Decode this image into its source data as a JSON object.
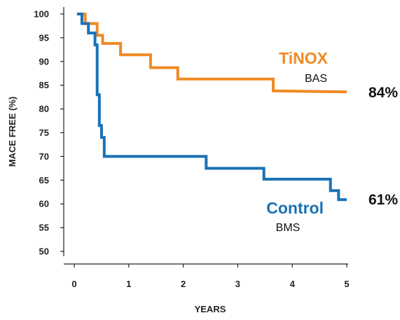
{
  "chart_data": {
    "type": "line",
    "step": true,
    "xlabel": "YEARS",
    "ylabel": "MACE FREE (%)",
    "xlim": [
      0,
      5
    ],
    "ylim": [
      50,
      100
    ],
    "x_ticks": [
      "0",
      "1",
      "2",
      "3",
      "4",
      "5"
    ],
    "y_ticks": [
      "100",
      "95",
      "90",
      "85",
      "80",
      "75",
      "70",
      "65",
      "60",
      "55",
      "50"
    ],
    "grid": false,
    "series": [
      {
        "name": "TiNOX",
        "sublabel": "BAS",
        "color": "#f08a24",
        "end_label": "84%",
        "points": [
          [
            0.05,
            100
          ],
          [
            0.2,
            100
          ],
          [
            0.2,
            98
          ],
          [
            0.42,
            98
          ],
          [
            0.42,
            95.5
          ],
          [
            0.52,
            95.5
          ],
          [
            0.52,
            93.8
          ],
          [
            0.85,
            93.8
          ],
          [
            0.85,
            91.4
          ],
          [
            1.4,
            91.4
          ],
          [
            1.4,
            88.7
          ],
          [
            1.9,
            88.7
          ],
          [
            1.9,
            86.3
          ],
          [
            3.65,
            86.3
          ],
          [
            3.65,
            83.8
          ],
          [
            5.0,
            83.6
          ]
        ]
      },
      {
        "name": "Control",
        "sublabel": "BMS",
        "color": "#1a72b5",
        "end_label": "61%",
        "points": [
          [
            0.05,
            100
          ],
          [
            0.14,
            100
          ],
          [
            0.14,
            98
          ],
          [
            0.26,
            98
          ],
          [
            0.26,
            96
          ],
          [
            0.38,
            96
          ],
          [
            0.38,
            93.5
          ],
          [
            0.42,
            93.5
          ],
          [
            0.42,
            83
          ],
          [
            0.46,
            83
          ],
          [
            0.46,
            76.5
          ],
          [
            0.5,
            76.5
          ],
          [
            0.5,
            74
          ],
          [
            0.55,
            74
          ],
          [
            0.55,
            70
          ],
          [
            2.42,
            70
          ],
          [
            2.42,
            67.5
          ],
          [
            3.48,
            67.5
          ],
          [
            3.48,
            65.2
          ],
          [
            4.7,
            65.2
          ],
          [
            4.7,
            62.8
          ],
          [
            4.85,
            62.8
          ],
          [
            4.85,
            60.9
          ],
          [
            5.0,
            60.9
          ]
        ]
      }
    ]
  }
}
